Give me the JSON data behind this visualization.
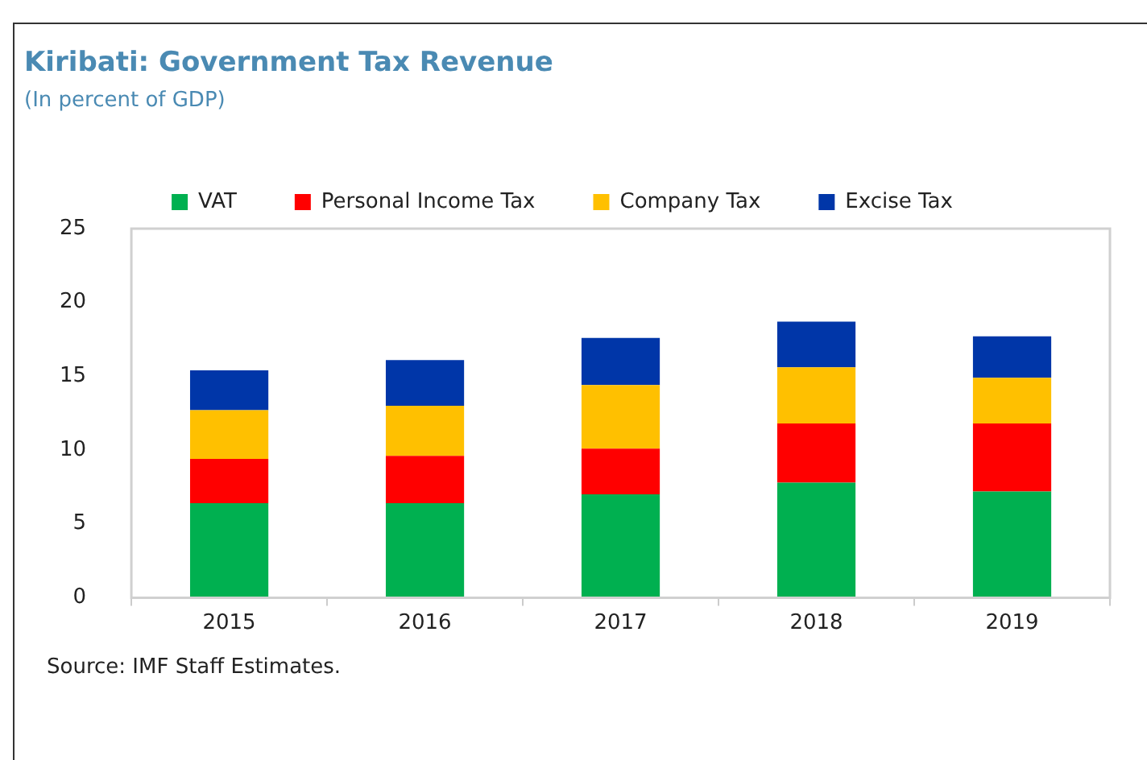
{
  "chart_data": {
    "type": "bar",
    "title": "Kiribati: Government Tax Revenue",
    "subtitle": "(In percent of GDP)",
    "categories": [
      "2015",
      "2016",
      "2017",
      "2018",
      "2019"
    ],
    "stacked": true,
    "series": [
      {
        "name": "VAT",
        "color": "#00b050",
        "values": [
          6.4,
          6.4,
          7.0,
          7.8,
          7.2
        ]
      },
      {
        "name": "Personal Income Tax",
        "color": "#ff0000",
        "values": [
          3.0,
          3.2,
          3.1,
          4.0,
          4.6
        ]
      },
      {
        "name": "Company Tax",
        "color": "#ffc000",
        "values": [
          3.3,
          3.4,
          4.3,
          3.8,
          3.1
        ]
      },
      {
        "name": "Excise Tax",
        "color": "#0036a8",
        "values": [
          2.7,
          3.1,
          3.2,
          3.1,
          2.8
        ]
      }
    ],
    "ylim": [
      0,
      25
    ],
    "yticks": [
      0,
      5,
      10,
      15,
      20,
      25
    ],
    "grid": false,
    "legend": "top",
    "annotations": [
      "Source: IMF Staff Estimates."
    ]
  }
}
